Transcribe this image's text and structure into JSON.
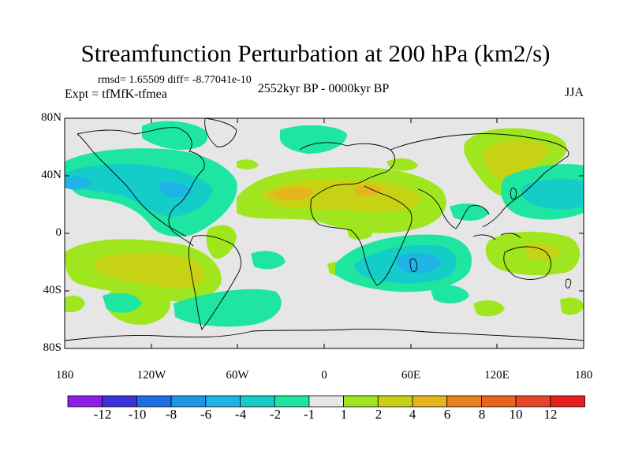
{
  "title": "Streamfunction Perturbation at 200 hPa (km2/s)",
  "stats": "rmsd= 1.65509 diff= -8.77041e-10",
  "experiment": "Expt = tfMfK-tfmea",
  "period": "2552kyr BP - 0000kyr BP",
  "season": "JJA",
  "lat_labels": [
    "80N",
    "40N",
    "0",
    "40S",
    "80S"
  ],
  "lon_labels": [
    "180",
    "120W",
    "60W",
    "0",
    "60E",
    "120E",
    "180"
  ],
  "colorbar": {
    "labels": [
      "-12",
      "-10",
      "-8",
      "-6",
      "-4",
      "-2",
      "-1",
      "1",
      "2",
      "4",
      "6",
      "8",
      "10",
      "12"
    ],
    "colors": [
      "#8c1ee6",
      "#3c32dc",
      "#1e6ee6",
      "#1e96e6",
      "#1eb4e6",
      "#14cdc8",
      "#1ee6a0",
      "#e6e6e6",
      "#a0e61e",
      "#c8d214",
      "#e6b41e",
      "#e6821e",
      "#e6641e",
      "#e64628",
      "#e61e1e"
    ]
  },
  "icons": {
    "map": "world-coastline-map"
  }
}
